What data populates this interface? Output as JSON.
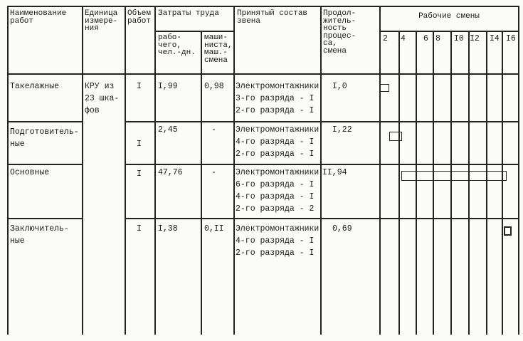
{
  "header": {
    "name": "Наименование\nработ",
    "unit": "Единица\nизмере-\nния",
    "volume": "Объем\nработ",
    "labor": "Затраты труда",
    "labor_worker": "рабо-\nчего,\nчел.-дн.",
    "labor_machinist": "маши-\nниста,\nмаш.-\nсмена",
    "crew": "Принятый состав\nзвена",
    "duration": "Продол-\nжитель-\nность\nпроцес-\nса,\nсмена",
    "shifts": "Рабочие смены",
    "shift_ticks": [
      "2",
      "4",
      "6",
      "8",
      "I0",
      "I2",
      "I4",
      "I6"
    ]
  },
  "unit_value": "КРУ из\n23 шка-\nфов",
  "rows": [
    {
      "name": "Такелажные",
      "volume": "I",
      "worker": "I,99",
      "machinist": "0,98",
      "crew": "Электромонтажники\n3-го разряда - I\n2-го разряда - I",
      "duration": "I,0",
      "bar_start_shift": 0,
      "bar_end_shift": 1
    },
    {
      "name": "Подготовитель-\nные",
      "volume": "I",
      "worker": "2,45",
      "machinist": "-",
      "crew": "Электромонтажники\n4-го разряда - I\n2-го разряда - I",
      "duration": "I,22",
      "bar_start_shift": 1,
      "bar_end_shift": 2.3
    },
    {
      "name": "Основные",
      "volume": "I",
      "worker": "47,76",
      "machinist": "-",
      "crew": "Электромонтажники\n6-го разряда - I\n4-го разряда - I\n2-го разряда - 2",
      "duration": "II,94",
      "bar_start_shift": 2.3,
      "bar_end_shift": 14.2
    },
    {
      "name": "Заключитель-\nные",
      "volume": "I",
      "worker": "I,38",
      "machinist": "0,II",
      "crew": "Электромонтажники\n4-го разряда - I\n2-го разряда - I",
      "duration": "0,69",
      "bar_start_shift": 14,
      "bar_end_shift": 14.8
    }
  ]
}
